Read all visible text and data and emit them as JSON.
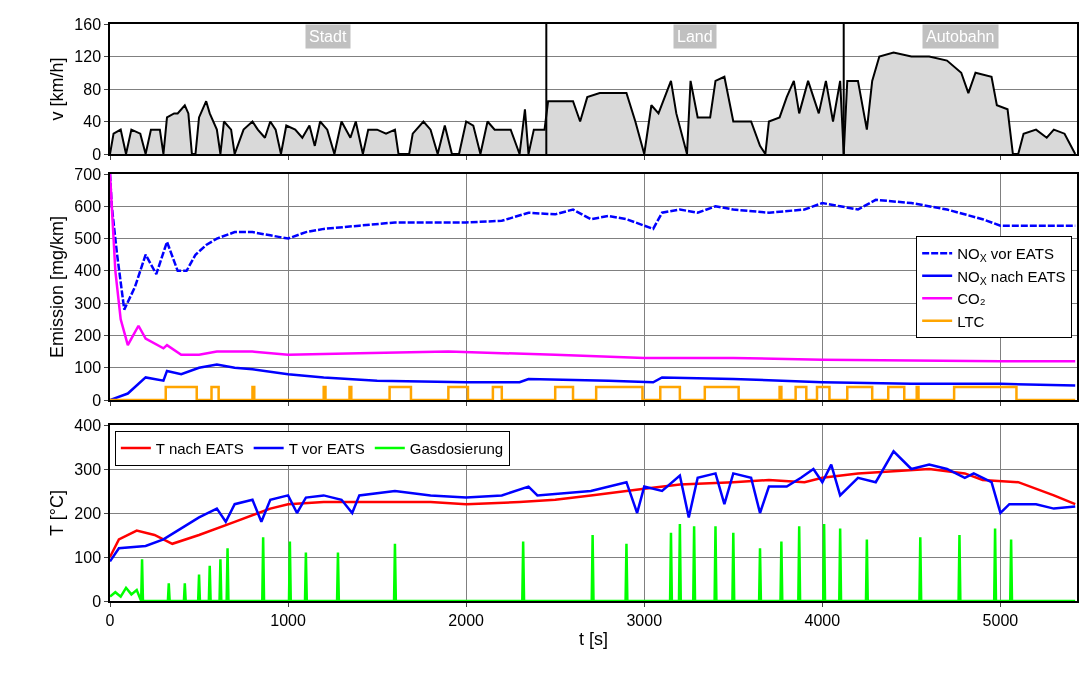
{
  "chart_data": [
    {
      "type": "area",
      "ylabel": "v [km/h]",
      "xlim": [
        0,
        5430
      ],
      "xticks": [
        0,
        1000,
        2000,
        3000,
        4000,
        5000
      ],
      "ylim": [
        0,
        160
      ],
      "yticks": [
        0,
        40,
        80,
        120,
        160
      ],
      "grid": "y",
      "tick_labels": "y",
      "series": [
        {
          "color": "#d9d9d9",
          "x": [
            0,
            20,
            60,
            90,
            120,
            170,
            200,
            230,
            280,
            300,
            320,
            360,
            380,
            420,
            440,
            460,
            480,
            500,
            540,
            560,
            600,
            620,
            640,
            680,
            700,
            750,
            800,
            830,
            870,
            900,
            930,
            960,
            990,
            1040,
            1080,
            1120,
            1150,
            1180,
            1220,
            1260,
            1300,
            1350,
            1380,
            1420,
            1450,
            1500,
            1550,
            1600,
            1620,
            1680,
            1700,
            1760,
            1800,
            1840,
            1880,
            1920,
            1960,
            2000,
            2040,
            2080,
            2120,
            2160,
            2200,
            2250,
            2300,
            2330,
            2350,
            2380,
            2440,
            2460,
            2600,
            2640,
            2680,
            2750,
            2900,
            2950,
            3000,
            3040,
            3080,
            3150,
            3180,
            3240,
            3260,
            3300,
            3370,
            3400,
            3450,
            3500,
            3600,
            3650,
            3680,
            3700,
            3760,
            3800,
            3840,
            3870,
            3920,
            3980,
            4020,
            4060,
            4100,
            4120,
            4140,
            4200,
            4250,
            4280,
            4320,
            4400,
            4500,
            4600,
            4700,
            4780,
            4820,
            4860,
            4950,
            4980,
            5040,
            5070,
            5100,
            5130,
            5200,
            5260,
            5300,
            5360,
            5420
          ],
          "values": [
            0,
            25,
            30,
            0,
            30,
            25,
            0,
            30,
            30,
            0,
            45,
            50,
            50,
            60,
            50,
            0,
            0,
            45,
            65,
            50,
            30,
            0,
            40,
            30,
            0,
            30,
            40,
            30,
            20,
            40,
            30,
            0,
            35,
            30,
            20,
            35,
            10,
            40,
            30,
            0,
            40,
            20,
            40,
            0,
            30,
            30,
            25,
            30,
            0,
            0,
            25,
            40,
            30,
            0,
            35,
            0,
            0,
            40,
            35,
            0,
            40,
            30,
            30,
            30,
            0,
            55,
            0,
            30,
            30,
            65,
            65,
            40,
            70,
            75,
            75,
            40,
            0,
            60,
            50,
            90,
            50,
            0,
            90,
            45,
            45,
            90,
            95,
            40,
            40,
            10,
            0,
            40,
            45,
            70,
            90,
            50,
            90,
            50,
            90,
            40,
            90,
            0,
            90,
            90,
            30,
            90,
            120,
            125,
            120,
            120,
            115,
            100,
            75,
            100,
            95,
            60,
            55,
            0,
            0,
            25,
            30,
            20,
            30,
            25,
            0
          ]
        }
      ],
      "ref_lines": [
        {
          "axis": "x",
          "value": 2450,
          "color": "#000000"
        },
        {
          "axis": "x",
          "value": 4120,
          "color": "#000000"
        }
      ],
      "annotations": [
        "Stadt",
        "Land",
        "Autobahn"
      ]
    },
    {
      "type": "line",
      "ylabel": "Emission [mg/km]",
      "xlim": [
        0,
        5430
      ],
      "xticks": [
        0,
        1000,
        2000,
        3000,
        4000,
        5000
      ],
      "ylim": [
        0,
        700
      ],
      "yticks": [
        0,
        100,
        200,
        300,
        400,
        500,
        600,
        700
      ],
      "grid": true,
      "tick_labels": "y",
      "legend": "right",
      "series": [
        {
          "name": "NO$_{X}$ vor EATS",
          "color": "#0000ff",
          "line_style": "dashed",
          "x": [
            0,
            10,
            40,
            80,
            140,
            200,
            260,
            320,
            380,
            430,
            480,
            540,
            600,
            700,
            800,
            900,
            1000,
            1100,
            1200,
            1400,
            1600,
            1800,
            2000,
            2200,
            2350,
            2500,
            2600,
            2700,
            2800,
            2900,
            3050,
            3100,
            3200,
            3300,
            3400,
            3500,
            3700,
            3900,
            4000,
            4100,
            4200,
            4300,
            4500,
            4700,
            4900,
            5000,
            5200,
            5420
          ],
          "values": [
            700,
            600,
            450,
            280,
            350,
            450,
            390,
            490,
            400,
            400,
            450,
            480,
            500,
            520,
            520,
            510,
            500,
            520,
            530,
            540,
            550,
            550,
            550,
            555,
            580,
            575,
            590,
            560,
            570,
            560,
            530,
            580,
            590,
            580,
            600,
            590,
            580,
            590,
            610,
            600,
            590,
            620,
            610,
            590,
            560,
            540,
            540,
            540
          ]
        },
        {
          "name": "NO$_{X}$ nach EATS",
          "color": "#0000ff",
          "line_style": "solid",
          "x": [
            0,
            100,
            200,
            300,
            320,
            400,
            500,
            600,
            700,
            800,
            1000,
            1200,
            1500,
            2000,
            2300,
            2350,
            2800,
            3050,
            3100,
            3500,
            4000,
            4500,
            5000,
            5420
          ],
          "values": [
            0,
            20,
            70,
            60,
            90,
            80,
            100,
            110,
            100,
            95,
            80,
            70,
            60,
            55,
            55,
            65,
            60,
            55,
            70,
            65,
            55,
            50,
            50,
            45
          ]
        },
        {
          "name": "CO₂",
          "color": "#ff00ff",
          "line_style": "solid",
          "x": [
            0,
            30,
            60,
            100,
            130,
            160,
            200,
            300,
            320,
            400,
            500,
            600,
            800,
            1000,
            1400,
            1900,
            2500,
            3000,
            3500,
            4000,
            5000,
            5420
          ],
          "values": [
            700,
            400,
            250,
            170,
            200,
            230,
            190,
            160,
            170,
            140,
            140,
            150,
            150,
            140,
            145,
            150,
            140,
            130,
            130,
            125,
            120,
            120
          ]
        },
        {
          "name": "LTC",
          "color": "#ffa500",
          "type": "step",
          "line_style": "solid",
          "x": [
            0,
            313,
            487,
            570,
            610,
            800,
            810,
            1200,
            1210,
            1345,
            1355,
            1570,
            1690,
            1900,
            2010,
            2150,
            2200,
            2500,
            2600,
            2730,
            2990,
            3090,
            3200,
            3340,
            3530,
            3760,
            3770,
            3850,
            3910,
            3970,
            4040,
            4140,
            4280,
            4370,
            4460,
            4530,
            4540,
            4740,
            5090,
            5420
          ],
          "values": [
            0,
            40,
            0,
            40,
            0,
            40,
            0,
            40,
            0,
            40,
            0,
            40,
            0,
            40,
            0,
            40,
            0,
            40,
            0,
            40,
            0,
            40,
            0,
            40,
            0,
            40,
            0,
            40,
            0,
            40,
            0,
            40,
            0,
            40,
            0,
            40,
            0,
            40,
            0,
            0
          ]
        }
      ]
    },
    {
      "type": "line",
      "xlabel": "t [s]",
      "ylabel": "T [°C]",
      "xlim": [
        0,
        5430
      ],
      "xticks": [
        0,
        1000,
        2000,
        3000,
        4000,
        5000
      ],
      "ylim": [
        0,
        400
      ],
      "yticks": [
        0,
        100,
        200,
        300,
        400
      ],
      "grid": true,
      "legend": "top left",
      "series": [
        {
          "name": "T nach EATS",
          "color": "#ff0000",
          "x": [
            0,
            50,
            150,
            250,
            350,
            500,
            700,
            900,
            1000,
            1200,
            1500,
            1800,
            2000,
            2300,
            2500,
            2700,
            3000,
            3200,
            3500,
            3700,
            3900,
            4000,
            4200,
            4400,
            4600,
            4800,
            4900,
            5100,
            5300,
            5420
          ],
          "values": [
            100,
            140,
            160,
            150,
            130,
            150,
            180,
            210,
            220,
            225,
            225,
            225,
            220,
            225,
            230,
            240,
            255,
            265,
            270,
            275,
            270,
            280,
            290,
            295,
            300,
            290,
            275,
            270,
            240,
            220
          ]
        },
        {
          "name": "T vor EATS",
          "color": "#0000ff",
          "x": [
            0,
            50,
            200,
            300,
            400,
            500,
            600,
            650,
            700,
            800,
            850,
            900,
            1000,
            1050,
            1100,
            1200,
            1300,
            1360,
            1400,
            1600,
            1800,
            2000,
            2200,
            2350,
            2400,
            2700,
            2900,
            2960,
            3000,
            3100,
            3200,
            3250,
            3300,
            3400,
            3450,
            3500,
            3600,
            3650,
            3700,
            3800,
            3880,
            3950,
            4000,
            4050,
            4100,
            4200,
            4300,
            4400,
            4500,
            4600,
            4700,
            4800,
            4850,
            4950,
            5000,
            5050,
            5200,
            5300,
            5420
          ],
          "values": [
            90,
            120,
            125,
            140,
            165,
            190,
            210,
            180,
            220,
            230,
            180,
            230,
            240,
            200,
            235,
            240,
            230,
            200,
            240,
            250,
            240,
            235,
            240,
            260,
            240,
            250,
            270,
            200,
            260,
            250,
            285,
            190,
            280,
            290,
            220,
            290,
            280,
            200,
            260,
            260,
            280,
            300,
            270,
            310,
            240,
            280,
            270,
            340,
            300,
            310,
            300,
            280,
            290,
            270,
            200,
            220,
            220,
            210,
            215
          ]
        },
        {
          "name": "Gasdosierung",
          "color": "#00ff00",
          "x": [
            0,
            30,
            60,
            90,
            120,
            150,
            175,
            180,
            185,
            325,
            330,
            335,
            415,
            420,
            425,
            495,
            500,
            505,
            555,
            560,
            565,
            615,
            620,
            625,
            655,
            660,
            665,
            855,
            860,
            865,
            1005,
            1010,
            1015,
            1095,
            1100,
            1105,
            1275,
            1280,
            1285,
            1595,
            1600,
            1605,
            2315,
            2320,
            2325,
            2705,
            2710,
            2715,
            2895,
            2900,
            2905,
            3145,
            3150,
            3155,
            3195,
            3200,
            3205,
            3275,
            3280,
            3285,
            3395,
            3400,
            3405,
            3495,
            3500,
            3505,
            3645,
            3650,
            3655,
            3765,
            3770,
            3775,
            3865,
            3870,
            3875,
            4005,
            4010,
            4015,
            4095,
            4100,
            4105,
            4245,
            4250,
            4255,
            4545,
            4550,
            4555,
            4765,
            4770,
            4775,
            4965,
            4970,
            4975,
            5055,
            5060,
            5065,
            5420
          ],
          "values": [
            10,
            20,
            10,
            30,
            15,
            25,
            0,
            95,
            0,
            0,
            40,
            0,
            0,
            40,
            0,
            0,
            60,
            0,
            0,
            80,
            0,
            0,
            95,
            0,
            0,
            120,
            0,
            0,
            145,
            0,
            0,
            135,
            0,
            0,
            110,
            0,
            0,
            110,
            0,
            0,
            130,
            0,
            0,
            135,
            0,
            0,
            150,
            0,
            0,
            130,
            0,
            0,
            155,
            0,
            0,
            175,
            0,
            0,
            170,
            0,
            0,
            170,
            0,
            0,
            155,
            0,
            0,
            120,
            0,
            0,
            135,
            0,
            0,
            170,
            0,
            0,
            175,
            0,
            0,
            165,
            0,
            0,
            140,
            0,
            0,
            145,
            0,
            0,
            150,
            0,
            0,
            165,
            0,
            0,
            140,
            0,
            0
          ]
        }
      ]
    }
  ]
}
